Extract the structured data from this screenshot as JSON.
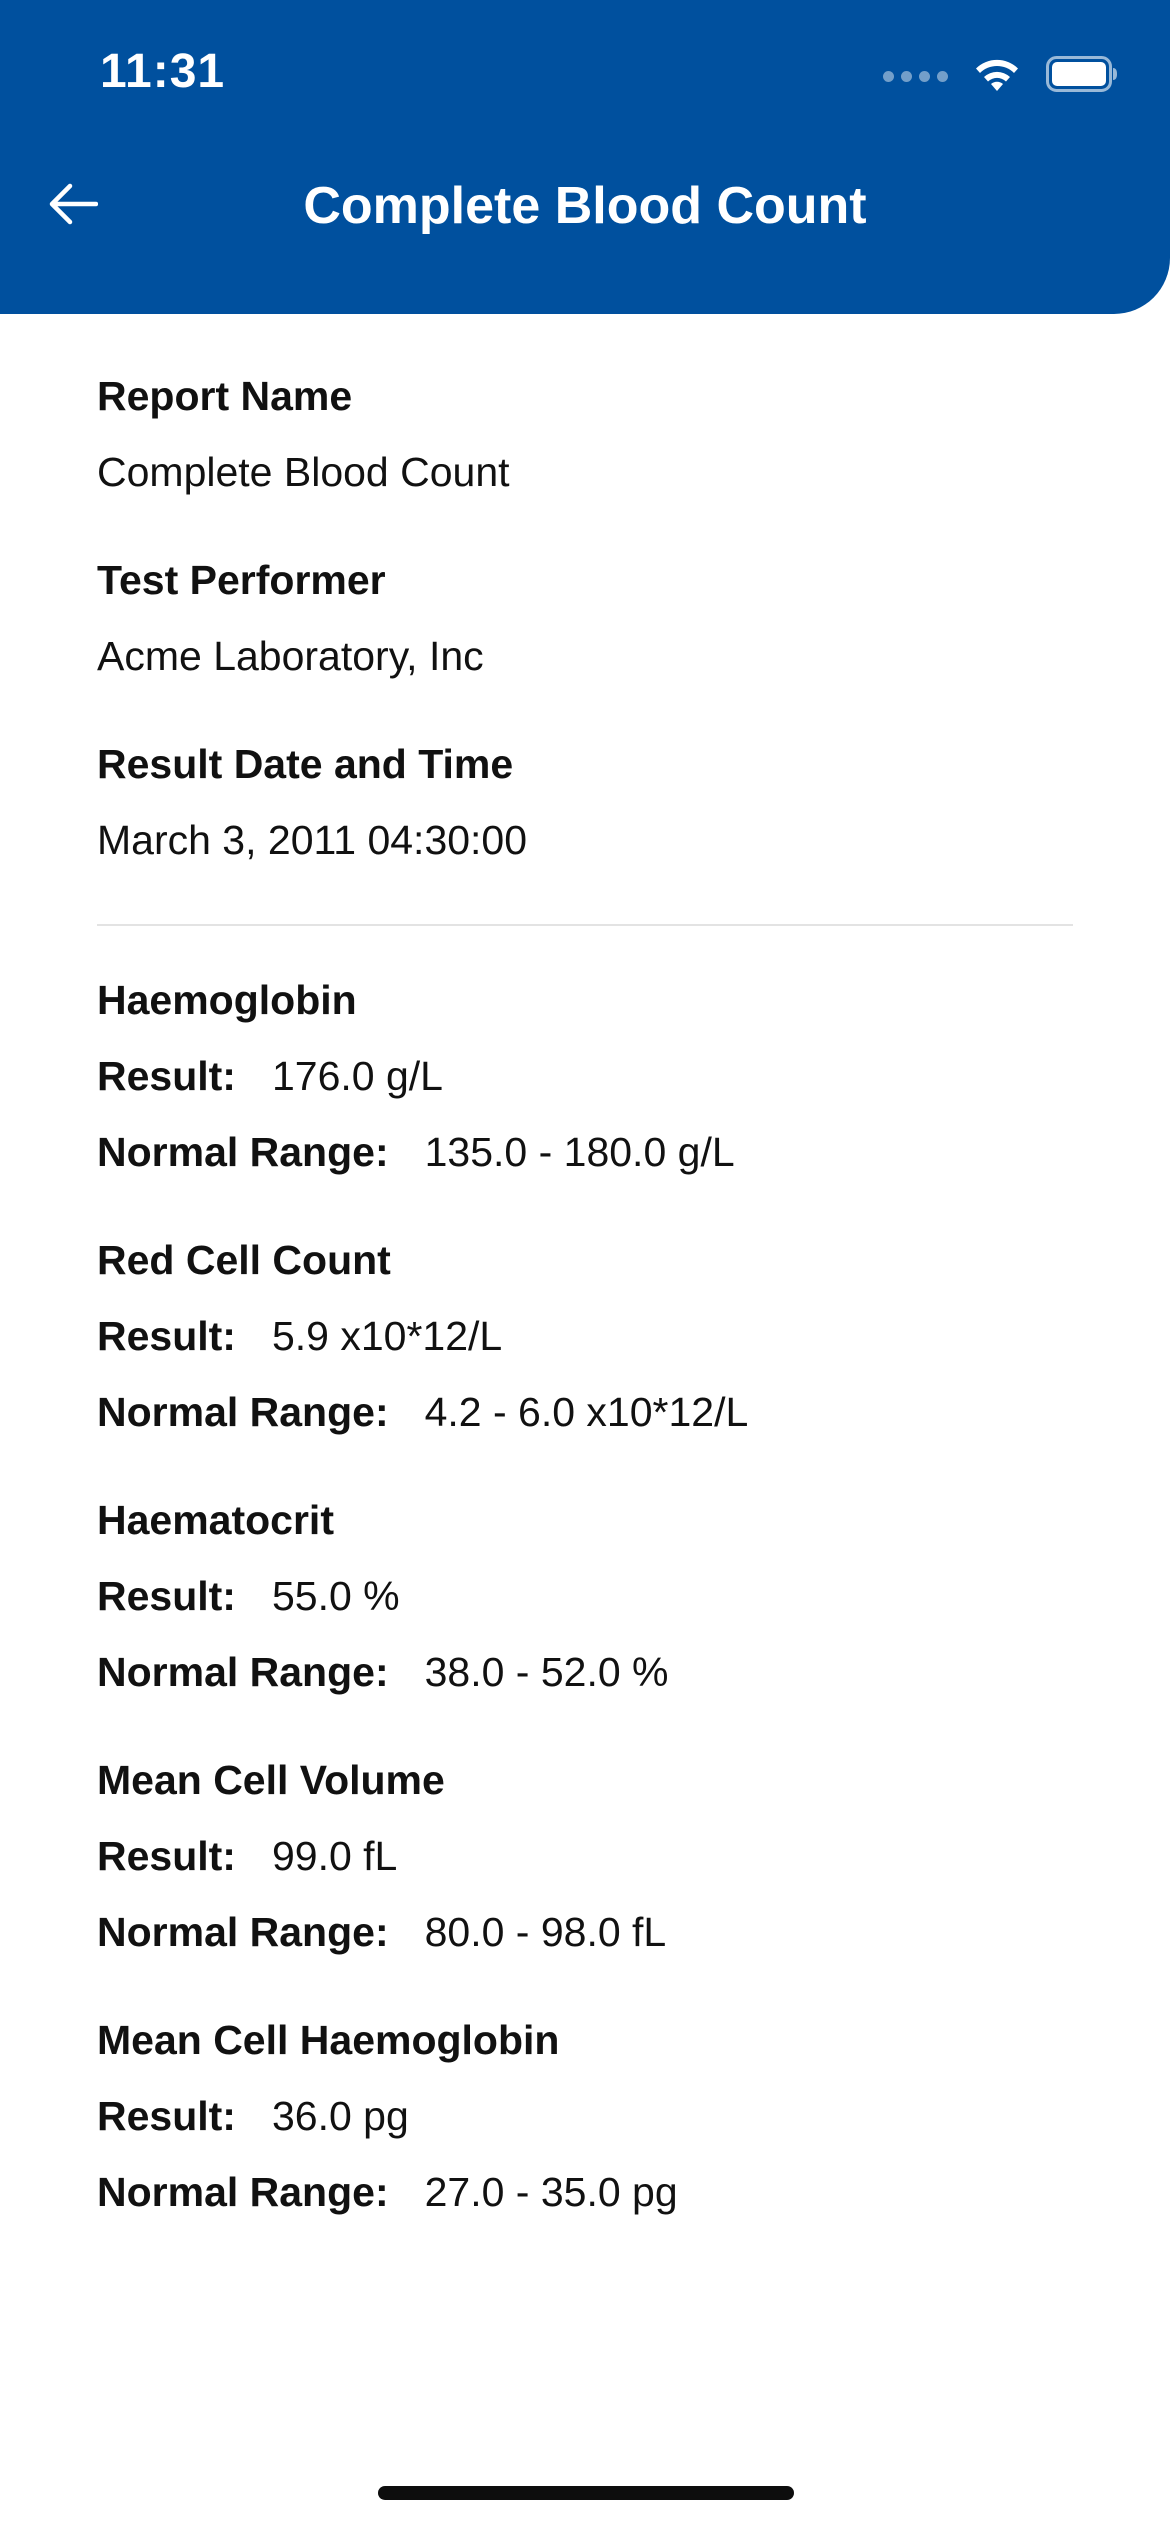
{
  "status_bar": {
    "time": "11:31"
  },
  "header": {
    "title": "Complete Blood Count",
    "back_icon": "arrow-left-icon",
    "background_color": "#00509e"
  },
  "report": {
    "fields": [
      {
        "label": "Report Name",
        "value": "Complete Blood Count"
      },
      {
        "label": "Test Performer",
        "value": "Acme Laboratory, Inc"
      },
      {
        "label": "Result Date and Time",
        "value": "March 3, 2011 04:30:00"
      }
    ]
  },
  "labels": {
    "result": "Result:",
    "normal_range": "Normal Range:"
  },
  "tests": [
    {
      "name": "Haemoglobin",
      "result": "176.0 g/L",
      "range": "135.0 - 180.0 g/L"
    },
    {
      "name": "Red Cell Count",
      "result": "5.9 x10*12/L",
      "range": "4.2 - 6.0 x10*12/L"
    },
    {
      "name": "Haematocrit",
      "result": "55.0 %",
      "range": "38.0 - 52.0 %"
    },
    {
      "name": "Mean Cell Volume",
      "result": "99.0 fL",
      "range": "80.0 - 98.0 fL"
    },
    {
      "name": "Mean Cell Haemoglobin",
      "result": "36.0 pg",
      "range": "27.0 - 35.0 pg"
    }
  ]
}
